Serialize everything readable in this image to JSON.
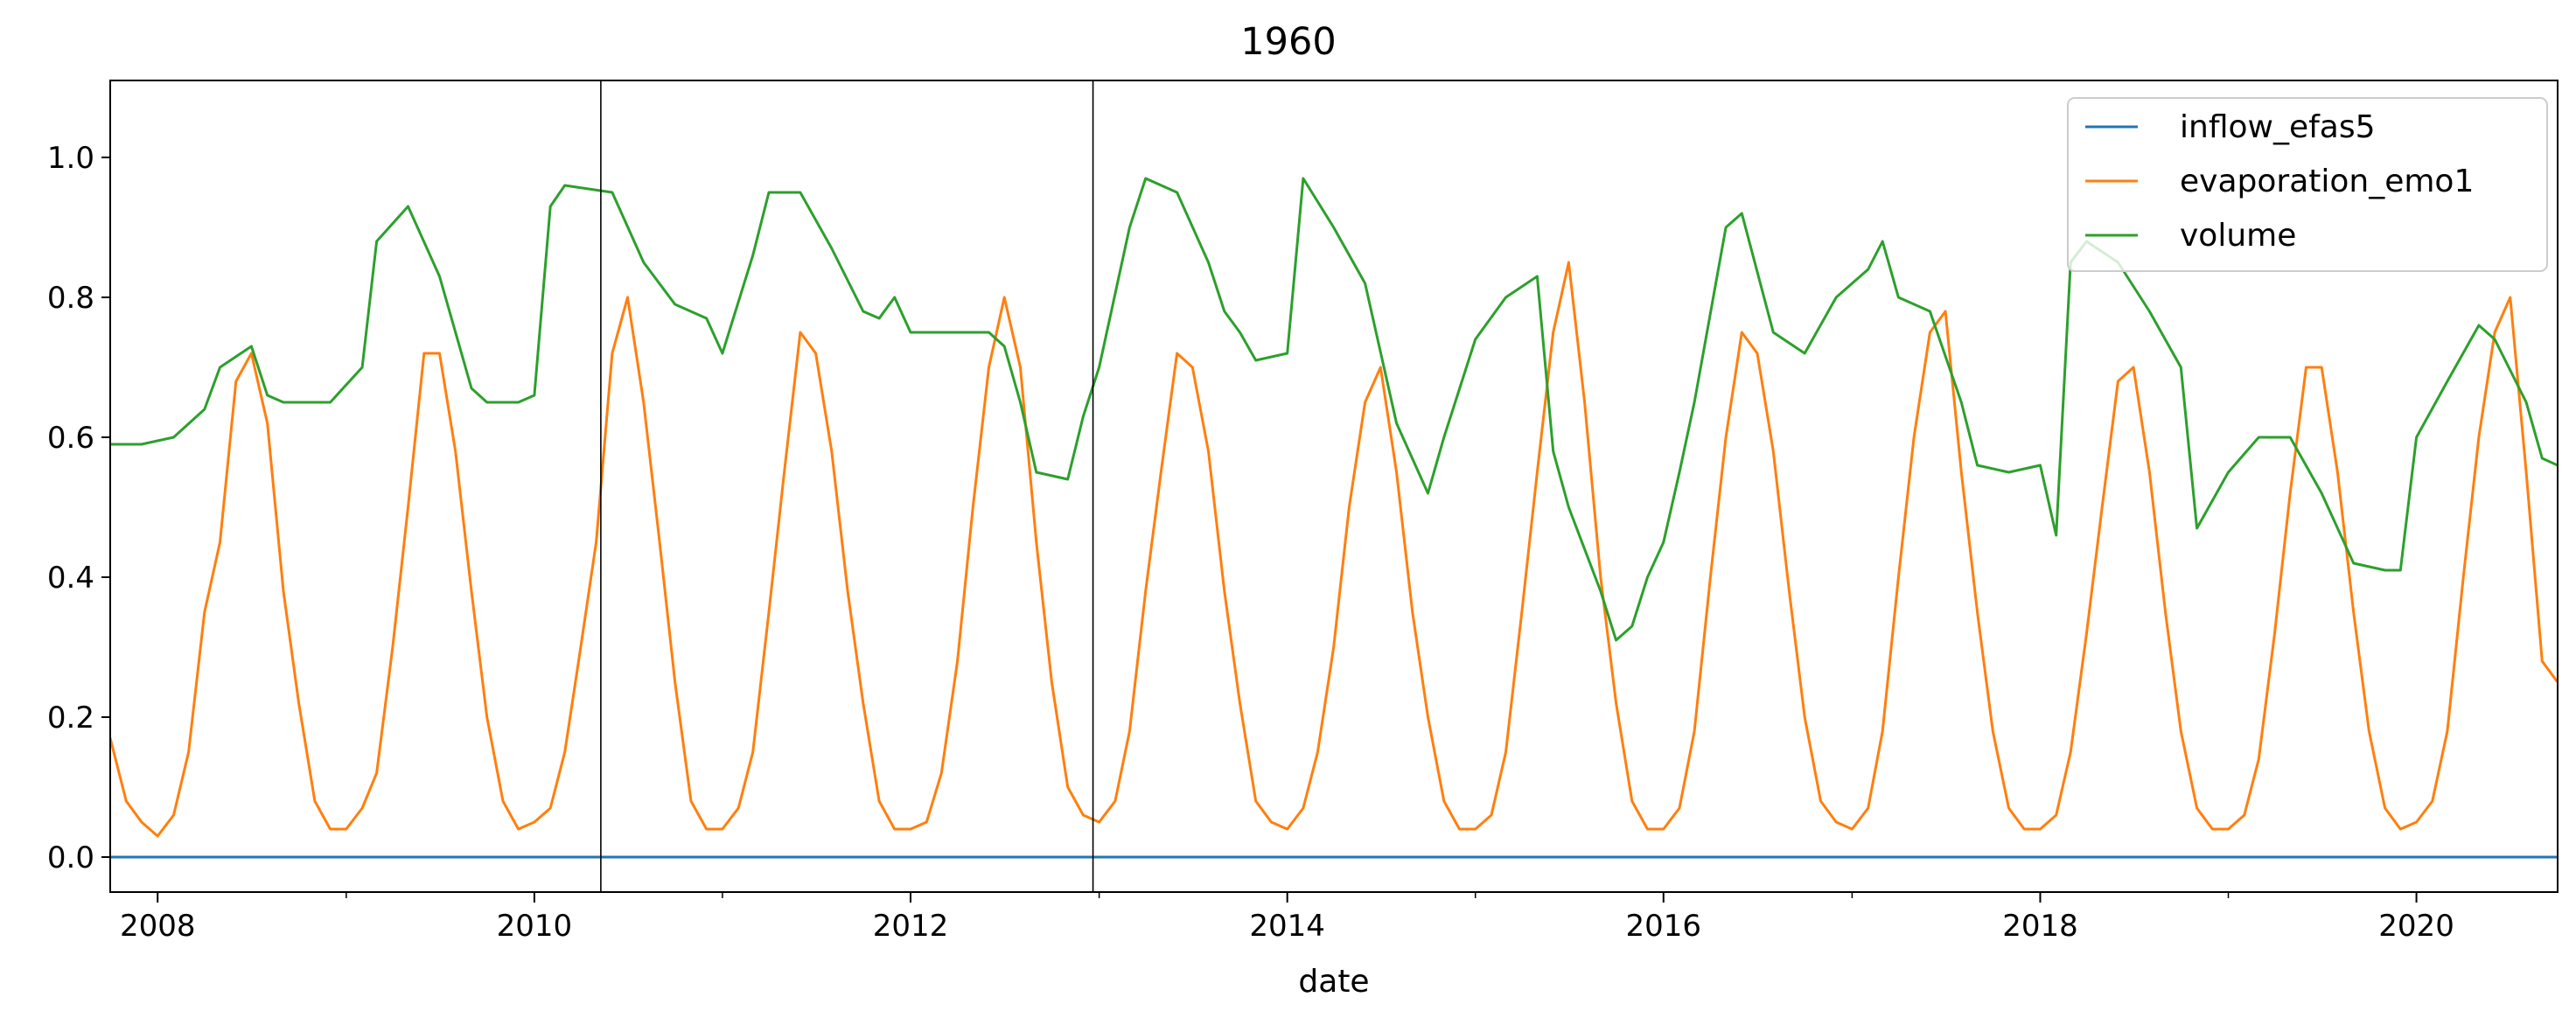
{
  "chart_data": {
    "type": "line",
    "title": "1960",
    "xlabel": "date",
    "ylabel": "",
    "xlim": [
      "2007-10-01",
      "2020-10-01"
    ],
    "ylim": [
      -0.05,
      1.11
    ],
    "x_ticks": [
      {
        "label": "2008",
        "date": "2008-01-01"
      },
      {
        "label": "2010",
        "date": "2010-01-01"
      },
      {
        "label": "2012",
        "date": "2012-01-01"
      },
      {
        "label": "2014",
        "date": "2014-01-01"
      },
      {
        "label": "2016",
        "date": "2016-01-01"
      },
      {
        "label": "2018",
        "date": "2018-01-01"
      },
      {
        "label": "2020",
        "date": "2020-01-01"
      }
    ],
    "y_ticks": [
      {
        "label": "0.0",
        "value": 0.0
      },
      {
        "label": "0.2",
        "value": 0.2
      },
      {
        "label": "0.4",
        "value": 0.4
      },
      {
        "label": "0.6",
        "value": 0.6
      },
      {
        "label": "0.8",
        "value": 0.8
      },
      {
        "label": "1.0",
        "value": 1.0
      }
    ],
    "grid": false,
    "legend_position": "top-right",
    "vertical_markers": [
      "2010-05-10",
      "2012-12-20"
    ],
    "series": [
      {
        "name": "inflow_efas5",
        "color": "#1f77b4",
        "points": [
          [
            "2007-10-01",
            0.0
          ],
          [
            "2020-10-01",
            0.0
          ]
        ]
      },
      {
        "name": "evaporation_emo1",
        "color": "#ff7f0e",
        "points": [
          [
            "2007-10-01",
            0.17
          ],
          [
            "2007-11-01",
            0.08
          ],
          [
            "2007-12-01",
            0.05
          ],
          [
            "2008-01-01",
            0.03
          ],
          [
            "2008-02-01",
            0.06
          ],
          [
            "2008-03-01",
            0.15
          ],
          [
            "2008-04-01",
            0.35
          ],
          [
            "2008-05-01",
            0.45
          ],
          [
            "2008-06-01",
            0.68
          ],
          [
            "2008-07-01",
            0.72
          ],
          [
            "2008-08-01",
            0.62
          ],
          [
            "2008-09-01",
            0.38
          ],
          [
            "2008-10-01",
            0.22
          ],
          [
            "2008-11-01",
            0.08
          ],
          [
            "2008-12-01",
            0.04
          ],
          [
            "2009-01-01",
            0.04
          ],
          [
            "2009-02-01",
            0.07
          ],
          [
            "2009-03-01",
            0.12
          ],
          [
            "2009-04-01",
            0.3
          ],
          [
            "2009-05-01",
            0.5
          ],
          [
            "2009-06-01",
            0.72
          ],
          [
            "2009-07-01",
            0.72
          ],
          [
            "2009-08-01",
            0.58
          ],
          [
            "2009-09-01",
            0.38
          ],
          [
            "2009-10-01",
            0.2
          ],
          [
            "2009-11-01",
            0.08
          ],
          [
            "2009-12-01",
            0.04
          ],
          [
            "2010-01-01",
            0.05
          ],
          [
            "2010-02-01",
            0.07
          ],
          [
            "2010-03-01",
            0.15
          ],
          [
            "2010-04-01",
            0.3
          ],
          [
            "2010-05-01",
            0.45
          ],
          [
            "2010-06-01",
            0.72
          ],
          [
            "2010-07-01",
            0.8
          ],
          [
            "2010-08-01",
            0.65
          ],
          [
            "2010-09-01",
            0.45
          ],
          [
            "2010-10-01",
            0.25
          ],
          [
            "2010-11-01",
            0.08
          ],
          [
            "2010-12-01",
            0.04
          ],
          [
            "2011-01-01",
            0.04
          ],
          [
            "2011-02-01",
            0.07
          ],
          [
            "2011-03-01",
            0.15
          ],
          [
            "2011-04-01",
            0.35
          ],
          [
            "2011-05-01",
            0.55
          ],
          [
            "2011-06-01",
            0.75
          ],
          [
            "2011-07-01",
            0.72
          ],
          [
            "2011-08-01",
            0.58
          ],
          [
            "2011-09-01",
            0.38
          ],
          [
            "2011-10-01",
            0.22
          ],
          [
            "2011-11-01",
            0.08
          ],
          [
            "2011-12-01",
            0.04
          ],
          [
            "2012-01-01",
            0.04
          ],
          [
            "2012-02-01",
            0.05
          ],
          [
            "2012-03-01",
            0.12
          ],
          [
            "2012-04-01",
            0.28
          ],
          [
            "2012-05-01",
            0.5
          ],
          [
            "2012-06-01",
            0.7
          ],
          [
            "2012-07-01",
            0.8
          ],
          [
            "2012-08-01",
            0.7
          ],
          [
            "2012-09-01",
            0.45
          ],
          [
            "2012-10-01",
            0.25
          ],
          [
            "2012-11-01",
            0.1
          ],
          [
            "2012-12-01",
            0.06
          ],
          [
            "2013-01-01",
            0.05
          ],
          [
            "2013-02-01",
            0.08
          ],
          [
            "2013-03-01",
            0.18
          ],
          [
            "2013-04-01",
            0.38
          ],
          [
            "2013-05-01",
            0.55
          ],
          [
            "2013-06-01",
            0.72
          ],
          [
            "2013-07-01",
            0.7
          ],
          [
            "2013-08-01",
            0.58
          ],
          [
            "2013-09-01",
            0.38
          ],
          [
            "2013-10-01",
            0.22
          ],
          [
            "2013-11-01",
            0.08
          ],
          [
            "2013-12-01",
            0.05
          ],
          [
            "2014-01-01",
            0.04
          ],
          [
            "2014-02-01",
            0.07
          ],
          [
            "2014-03-01",
            0.15
          ],
          [
            "2014-04-01",
            0.3
          ],
          [
            "2014-05-01",
            0.5
          ],
          [
            "2014-06-01",
            0.65
          ],
          [
            "2014-07-01",
            0.7
          ],
          [
            "2014-08-01",
            0.55
          ],
          [
            "2014-09-01",
            0.35
          ],
          [
            "2014-10-01",
            0.2
          ],
          [
            "2014-11-01",
            0.08
          ],
          [
            "2014-12-01",
            0.04
          ],
          [
            "2015-01-01",
            0.04
          ],
          [
            "2015-02-01",
            0.06
          ],
          [
            "2015-03-01",
            0.15
          ],
          [
            "2015-04-01",
            0.35
          ],
          [
            "2015-05-01",
            0.55
          ],
          [
            "2015-06-01",
            0.75
          ],
          [
            "2015-07-01",
            0.85
          ],
          [
            "2015-08-01",
            0.65
          ],
          [
            "2015-09-01",
            0.4
          ],
          [
            "2015-10-01",
            0.22
          ],
          [
            "2015-11-01",
            0.08
          ],
          [
            "2015-12-01",
            0.04
          ],
          [
            "2016-01-01",
            0.04
          ],
          [
            "2016-02-01",
            0.07
          ],
          [
            "2016-03-01",
            0.18
          ],
          [
            "2016-04-01",
            0.4
          ],
          [
            "2016-05-01",
            0.6
          ],
          [
            "2016-06-01",
            0.75
          ],
          [
            "2016-07-01",
            0.72
          ],
          [
            "2016-08-01",
            0.58
          ],
          [
            "2016-09-01",
            0.38
          ],
          [
            "2016-10-01",
            0.2
          ],
          [
            "2016-11-01",
            0.08
          ],
          [
            "2016-12-01",
            0.05
          ],
          [
            "2017-01-01",
            0.04
          ],
          [
            "2017-02-01",
            0.07
          ],
          [
            "2017-03-01",
            0.18
          ],
          [
            "2017-04-01",
            0.4
          ],
          [
            "2017-05-01",
            0.6
          ],
          [
            "2017-06-01",
            0.75
          ],
          [
            "2017-07-01",
            0.78
          ],
          [
            "2017-08-01",
            0.55
          ],
          [
            "2017-09-01",
            0.35
          ],
          [
            "2017-10-01",
            0.18
          ],
          [
            "2017-11-01",
            0.07
          ],
          [
            "2017-12-01",
            0.04
          ],
          [
            "2018-01-01",
            0.04
          ],
          [
            "2018-02-01",
            0.06
          ],
          [
            "2018-03-01",
            0.15
          ],
          [
            "2018-04-01",
            0.32
          ],
          [
            "2018-05-01",
            0.5
          ],
          [
            "2018-06-01",
            0.68
          ],
          [
            "2018-07-01",
            0.7
          ],
          [
            "2018-08-01",
            0.55
          ],
          [
            "2018-09-01",
            0.35
          ],
          [
            "2018-10-01",
            0.18
          ],
          [
            "2018-11-01",
            0.07
          ],
          [
            "2018-12-01",
            0.04
          ],
          [
            "2019-01-01",
            0.04
          ],
          [
            "2019-02-01",
            0.06
          ],
          [
            "2019-03-01",
            0.14
          ],
          [
            "2019-04-01",
            0.32
          ],
          [
            "2019-05-01",
            0.52
          ],
          [
            "2019-06-01",
            0.7
          ],
          [
            "2019-07-01",
            0.7
          ],
          [
            "2019-08-01",
            0.55
          ],
          [
            "2019-09-01",
            0.35
          ],
          [
            "2019-10-01",
            0.18
          ],
          [
            "2019-11-01",
            0.07
          ],
          [
            "2019-12-01",
            0.04
          ],
          [
            "2020-01-01",
            0.05
          ],
          [
            "2020-02-01",
            0.08
          ],
          [
            "2020-03-01",
            0.18
          ],
          [
            "2020-04-01",
            0.4
          ],
          [
            "2020-05-01",
            0.6
          ],
          [
            "2020-06-01",
            0.75
          ],
          [
            "2020-07-01",
            0.8
          ],
          [
            "2020-08-01",
            0.55
          ],
          [
            "2020-09-01",
            0.28
          ],
          [
            "2020-10-01",
            0.25
          ]
        ]
      },
      {
        "name": "volume",
        "color": "#2ca02c",
        "points": [
          [
            "2007-10-01",
            0.59
          ],
          [
            "2007-12-01",
            0.59
          ],
          [
            "2008-02-01",
            0.6
          ],
          [
            "2008-04-01",
            0.64
          ],
          [
            "2008-05-01",
            0.7
          ],
          [
            "2008-07-01",
            0.73
          ],
          [
            "2008-08-01",
            0.66
          ],
          [
            "2008-09-01",
            0.65
          ],
          [
            "2008-12-01",
            0.65
          ],
          [
            "2009-02-01",
            0.7
          ],
          [
            "2009-03-01",
            0.88
          ],
          [
            "2009-05-01",
            0.93
          ],
          [
            "2009-07-01",
            0.83
          ],
          [
            "2009-09-01",
            0.67
          ],
          [
            "2009-10-01",
            0.65
          ],
          [
            "2009-12-01",
            0.65
          ],
          [
            "2010-01-01",
            0.66
          ],
          [
            "2010-02-01",
            0.93
          ],
          [
            "2010-03-01",
            0.96
          ],
          [
            "2010-06-01",
            0.95
          ],
          [
            "2010-08-01",
            0.85
          ],
          [
            "2010-10-01",
            0.79
          ],
          [
            "2010-12-01",
            0.77
          ],
          [
            "2011-01-01",
            0.72
          ],
          [
            "2011-03-01",
            0.86
          ],
          [
            "2011-04-01",
            0.95
          ],
          [
            "2011-06-01",
            0.95
          ],
          [
            "2011-08-01",
            0.87
          ],
          [
            "2011-10-01",
            0.78
          ],
          [
            "2011-11-01",
            0.77
          ],
          [
            "2011-12-01",
            0.8
          ],
          [
            "2012-01-01",
            0.75
          ],
          [
            "2012-04-01",
            0.75
          ],
          [
            "2012-06-01",
            0.75
          ],
          [
            "2012-07-01",
            0.73
          ],
          [
            "2012-08-01",
            0.65
          ],
          [
            "2012-09-01",
            0.55
          ],
          [
            "2012-11-01",
            0.54
          ],
          [
            "2012-12-01",
            0.63
          ],
          [
            "2013-01-01",
            0.7
          ],
          [
            "2013-03-01",
            0.9
          ],
          [
            "2013-04-01",
            0.97
          ],
          [
            "2013-06-01",
            0.95
          ],
          [
            "2013-08-01",
            0.85
          ],
          [
            "2013-09-01",
            0.78
          ],
          [
            "2013-10-01",
            0.75
          ],
          [
            "2013-11-01",
            0.71
          ],
          [
            "2014-01-01",
            0.72
          ],
          [
            "2014-02-01",
            0.97
          ],
          [
            "2014-04-01",
            0.9
          ],
          [
            "2014-06-01",
            0.82
          ],
          [
            "2014-08-01",
            0.62
          ],
          [
            "2014-10-01",
            0.52
          ],
          [
            "2014-11-01",
            0.6
          ],
          [
            "2015-01-01",
            0.74
          ],
          [
            "2015-03-01",
            0.8
          ],
          [
            "2015-05-01",
            0.83
          ],
          [
            "2015-06-01",
            0.58
          ],
          [
            "2015-07-01",
            0.5
          ],
          [
            "2015-09-01",
            0.38
          ],
          [
            "2015-10-01",
            0.31
          ],
          [
            "2015-11-01",
            0.33
          ],
          [
            "2015-12-01",
            0.4
          ],
          [
            "2016-01-01",
            0.45
          ],
          [
            "2016-02-01",
            0.55
          ],
          [
            "2016-03-01",
            0.65
          ],
          [
            "2016-05-01",
            0.9
          ],
          [
            "2016-06-01",
            0.92
          ],
          [
            "2016-08-01",
            0.75
          ],
          [
            "2016-10-01",
            0.72
          ],
          [
            "2016-12-01",
            0.8
          ],
          [
            "2017-02-01",
            0.84
          ],
          [
            "2017-03-01",
            0.88
          ],
          [
            "2017-04-01",
            0.8
          ],
          [
            "2017-06-01",
            0.78
          ],
          [
            "2017-08-01",
            0.65
          ],
          [
            "2017-09-01",
            0.56
          ],
          [
            "2017-11-01",
            0.55
          ],
          [
            "2018-01-01",
            0.56
          ],
          [
            "2018-02-01",
            0.46
          ],
          [
            "2018-03-01",
            0.85
          ],
          [
            "2018-04-01",
            0.88
          ],
          [
            "2018-06-01",
            0.85
          ],
          [
            "2018-08-01",
            0.78
          ],
          [
            "2018-10-01",
            0.7
          ],
          [
            "2018-11-01",
            0.47
          ],
          [
            "2019-01-01",
            0.55
          ],
          [
            "2019-03-01",
            0.6
          ],
          [
            "2019-05-01",
            0.6
          ],
          [
            "2019-07-01",
            0.52
          ],
          [
            "2019-09-01",
            0.42
          ],
          [
            "2019-11-01",
            0.41
          ],
          [
            "2019-12-01",
            0.41
          ],
          [
            "2020-01-01",
            0.6
          ],
          [
            "2020-03-01",
            0.68
          ],
          [
            "2020-05-01",
            0.76
          ],
          [
            "2020-06-01",
            0.74
          ],
          [
            "2020-08-01",
            0.65
          ],
          [
            "2020-09-01",
            0.57
          ],
          [
            "2020-10-01",
            0.56
          ]
        ]
      }
    ]
  }
}
